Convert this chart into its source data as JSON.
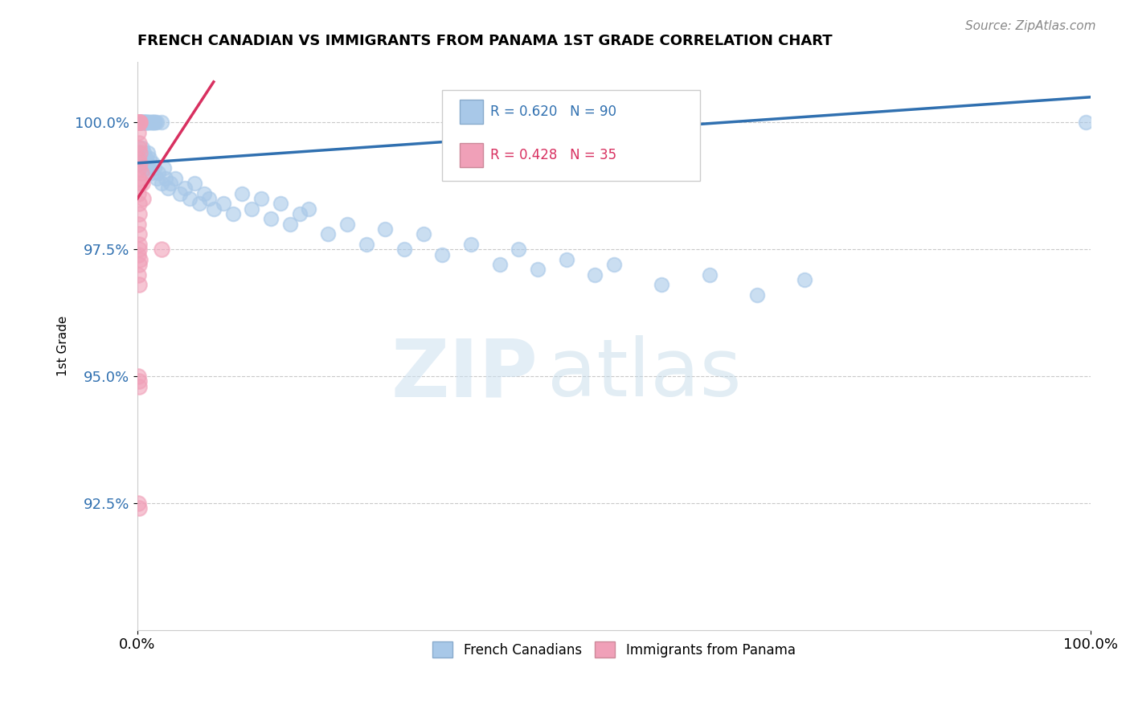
{
  "title": "FRENCH CANADIAN VS IMMIGRANTS FROM PANAMA 1ST GRADE CORRELATION CHART",
  "source": "Source: ZipAtlas.com",
  "ylabel": "1st Grade",
  "xlim": [
    0.0,
    100.0
  ],
  "ylim": [
    90.0,
    101.2
  ],
  "yticks": [
    92.5,
    95.0,
    97.5,
    100.0
  ],
  "xticks": [
    0.0,
    100.0
  ],
  "xticklabels": [
    "0.0%",
    "100.0%"
  ],
  "yticklabels": [
    "92.5%",
    "95.0%",
    "97.5%",
    "100.0%"
  ],
  "blue_R": 0.62,
  "blue_N": 90,
  "pink_R": 0.428,
  "pink_N": 35,
  "blue_color": "#a8c8e8",
  "pink_color": "#f0a0b8",
  "blue_line_color": "#3070b0",
  "pink_line_color": "#d83060",
  "legend_blue_label": "French Canadians",
  "legend_pink_label": "Immigrants from Panama",
  "watermark_zip": "ZIP",
  "watermark_atlas": "atlas",
  "blue_scatter": [
    [
      0.2,
      99.3
    ],
    [
      0.3,
      99.4
    ],
    [
      0.4,
      99.2
    ],
    [
      0.5,
      99.5
    ],
    [
      0.6,
      99.3
    ],
    [
      0.7,
      99.4
    ],
    [
      0.8,
      99.1
    ],
    [
      0.9,
      99.3
    ],
    [
      1.0,
      99.2
    ],
    [
      1.1,
      99.4
    ],
    [
      1.2,
      99.1
    ],
    [
      1.3,
      99.3
    ],
    [
      1.5,
      99.0
    ],
    [
      1.6,
      99.2
    ],
    [
      1.8,
      99.1
    ],
    [
      2.0,
      98.9
    ],
    [
      2.2,
      99.0
    ],
    [
      2.5,
      98.8
    ],
    [
      2.8,
      99.1
    ],
    [
      3.0,
      98.9
    ],
    [
      3.2,
      98.7
    ],
    [
      3.5,
      98.8
    ],
    [
      4.0,
      98.9
    ],
    [
      4.5,
      98.6
    ],
    [
      5.0,
      98.7
    ],
    [
      5.5,
      98.5
    ],
    [
      6.0,
      98.8
    ],
    [
      6.5,
      98.4
    ],
    [
      7.0,
      98.6
    ],
    [
      7.5,
      98.5
    ],
    [
      8.0,
      98.3
    ],
    [
      9.0,
      98.4
    ],
    [
      10.0,
      98.2
    ],
    [
      11.0,
      98.6
    ],
    [
      12.0,
      98.3
    ],
    [
      13.0,
      98.5
    ],
    [
      14.0,
      98.1
    ],
    [
      15.0,
      98.4
    ],
    [
      16.0,
      98.0
    ],
    [
      17.0,
      98.2
    ],
    [
      18.0,
      98.3
    ],
    [
      20.0,
      97.8
    ],
    [
      22.0,
      98.0
    ],
    [
      24.0,
      97.6
    ],
    [
      26.0,
      97.9
    ],
    [
      28.0,
      97.5
    ],
    [
      30.0,
      97.8
    ],
    [
      32.0,
      97.4
    ],
    [
      35.0,
      97.6
    ],
    [
      38.0,
      97.2
    ],
    [
      40.0,
      97.5
    ],
    [
      42.0,
      97.1
    ],
    [
      45.0,
      97.3
    ],
    [
      48.0,
      97.0
    ],
    [
      50.0,
      97.2
    ],
    [
      55.0,
      96.8
    ],
    [
      60.0,
      97.0
    ],
    [
      65.0,
      96.6
    ],
    [
      70.0,
      96.9
    ],
    [
      0.15,
      100.0
    ],
    [
      0.18,
      100.0
    ],
    [
      0.2,
      100.0
    ],
    [
      0.25,
      100.0
    ],
    [
      0.3,
      100.0
    ],
    [
      0.35,
      100.0
    ],
    [
      0.4,
      100.0
    ],
    [
      0.45,
      100.0
    ],
    [
      0.5,
      100.0
    ],
    [
      0.55,
      100.0
    ],
    [
      0.6,
      100.0
    ],
    [
      0.65,
      100.0
    ],
    [
      0.7,
      100.0
    ],
    [
      0.75,
      100.0
    ],
    [
      0.8,
      100.0
    ],
    [
      0.85,
      100.0
    ],
    [
      0.9,
      100.0
    ],
    [
      0.95,
      100.0
    ],
    [
      1.0,
      100.0
    ],
    [
      1.1,
      100.0
    ],
    [
      1.2,
      100.0
    ],
    [
      1.3,
      100.0
    ],
    [
      1.4,
      100.0
    ],
    [
      1.5,
      100.0
    ],
    [
      1.6,
      100.0
    ],
    [
      1.7,
      100.0
    ],
    [
      1.8,
      100.0
    ],
    [
      1.9,
      100.0
    ],
    [
      2.0,
      100.0
    ],
    [
      2.5,
      100.0
    ],
    [
      99.5,
      100.0
    ]
  ],
  "pink_scatter": [
    [
      0.1,
      100.0
    ],
    [
      0.15,
      100.0
    ],
    [
      0.2,
      100.0
    ],
    [
      0.25,
      100.0
    ],
    [
      0.3,
      100.0
    ],
    [
      0.1,
      99.8
    ],
    [
      0.15,
      99.6
    ],
    [
      0.2,
      99.5
    ],
    [
      0.25,
      99.4
    ],
    [
      0.3,
      99.2
    ],
    [
      0.4,
      99.0
    ],
    [
      0.5,
      98.8
    ],
    [
      0.6,
      98.5
    ],
    [
      0.1,
      99.3
    ],
    [
      0.15,
      99.1
    ],
    [
      0.2,
      98.9
    ],
    [
      0.25,
      98.8
    ],
    [
      0.1,
      98.6
    ],
    [
      0.15,
      98.4
    ],
    [
      0.2,
      98.2
    ],
    [
      0.1,
      98.0
    ],
    [
      0.15,
      97.8
    ],
    [
      0.2,
      97.6
    ],
    [
      0.1,
      97.4
    ],
    [
      0.15,
      97.2
    ],
    [
      0.1,
      97.0
    ],
    [
      0.15,
      96.8
    ],
    [
      0.2,
      97.5
    ],
    [
      0.3,
      97.3
    ],
    [
      2.5,
      97.5
    ],
    [
      0.1,
      95.0
    ],
    [
      0.15,
      94.8
    ],
    [
      0.1,
      92.5
    ],
    [
      0.15,
      92.4
    ],
    [
      0.2,
      94.9
    ]
  ],
  "blue_trendline": [
    [
      0.0,
      99.2
    ],
    [
      100.0,
      100.5
    ]
  ],
  "pink_trendline": [
    [
      0.0,
      98.5
    ],
    [
      8.0,
      100.8
    ]
  ]
}
